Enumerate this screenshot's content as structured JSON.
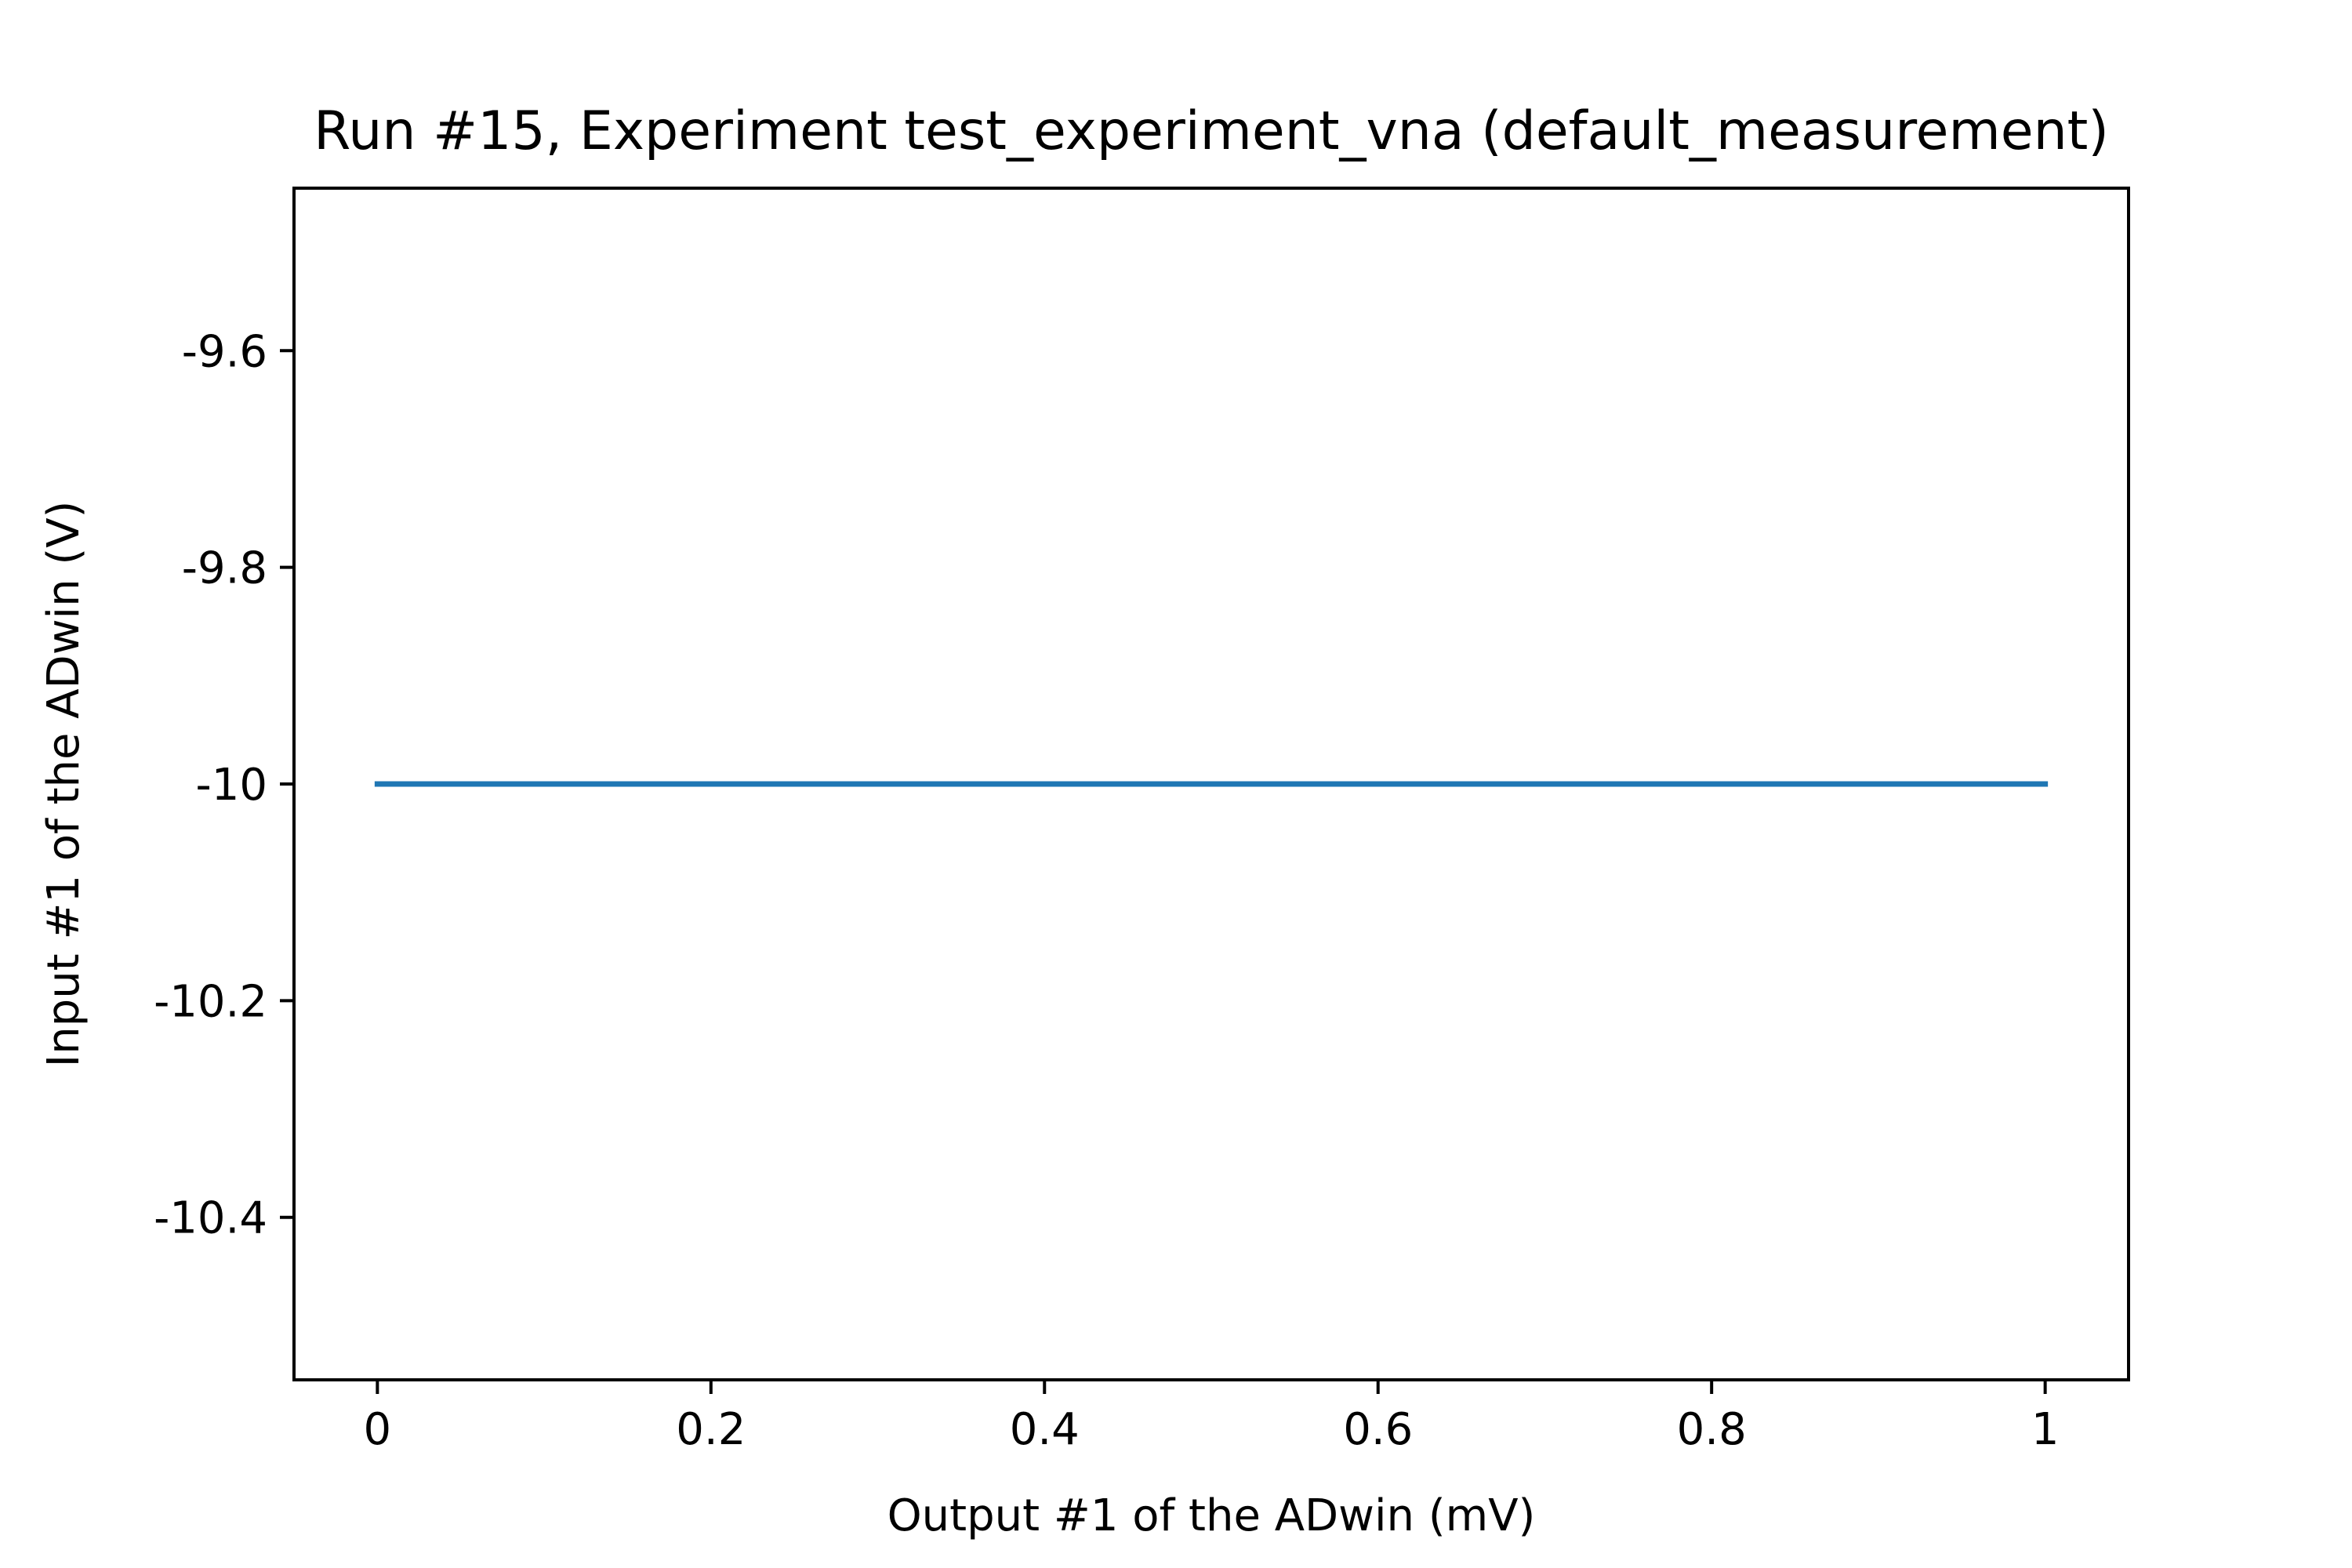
{
  "chart_data": {
    "type": "line",
    "title": "Run #15, Experiment test_experiment_vna (default_measurement)",
    "xlabel": "Output #1 of the ADwin (mV)",
    "ylabel": "Input #1 of the ADwin (V)",
    "xlim": [
      -0.05,
      1.05
    ],
    "ylim": [
      -10.55,
      -9.45
    ],
    "x_ticks": [
      0,
      0.2,
      0.4,
      0.6,
      0.8,
      1
    ],
    "x_tick_labels": [
      "0",
      "0.2",
      "0.4",
      "0.6",
      "0.8",
      "1"
    ],
    "y_ticks": [
      -9.6,
      -9.8,
      -10,
      -10.2,
      -10.4
    ],
    "y_tick_labels": [
      "-9.6",
      "-9.8",
      "-10",
      "-10.2",
      "-10.4"
    ],
    "grid": false,
    "series": [
      {
        "color": "#1f77b4",
        "x": [
          0,
          1
        ],
        "y": [
          -10,
          -10
        ]
      }
    ]
  }
}
